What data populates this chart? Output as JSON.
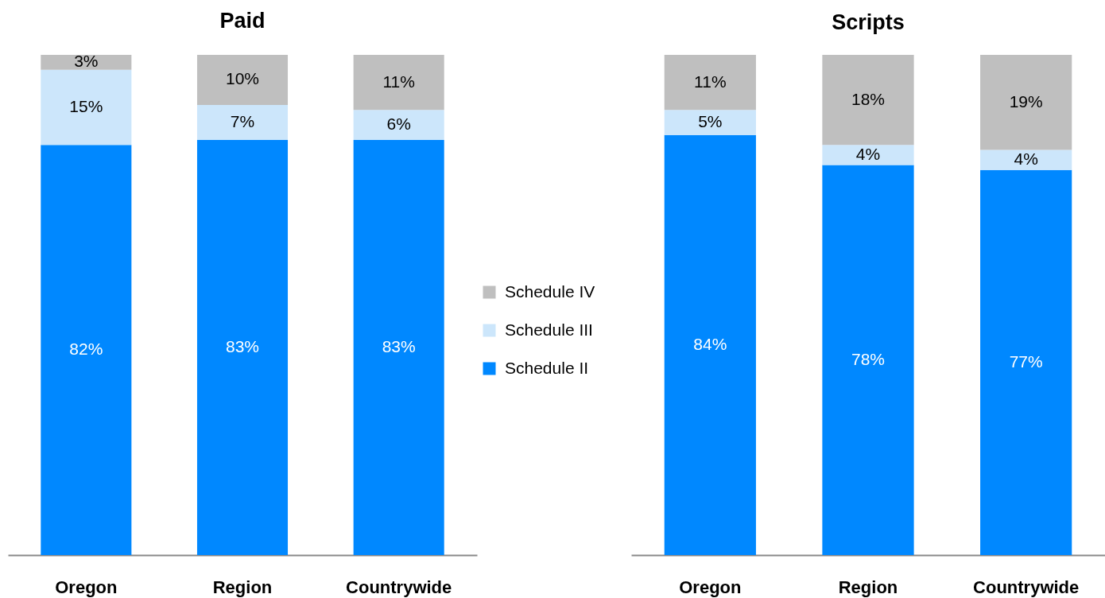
{
  "chart_data": [
    {
      "type": "bar",
      "title": "Paid",
      "categories": [
        "Oregon",
        "Region",
        "Countrywide"
      ],
      "stacked": true,
      "ylim": [
        0,
        100
      ],
      "tick_labels": "x",
      "legend": "right",
      "series": [
        {
          "name": "Schedule II",
          "color": "#0088ff",
          "values": [
            82,
            83,
            83
          ],
          "value_labels": [
            "82%",
            "83%",
            "83%"
          ]
        },
        {
          "name": "Schedule III",
          "color": "#cce6fb",
          "values": [
            15,
            7,
            6
          ],
          "value_labels": [
            "15%",
            "7%",
            "6%"
          ]
        },
        {
          "name": "Schedule IV",
          "color": "#bfbfbf",
          "values": [
            3,
            10,
            11
          ],
          "value_labels": [
            "3%",
            "10%",
            "11%"
          ]
        }
      ]
    },
    {
      "type": "bar",
      "title": "Scripts",
      "categories": [
        "Oregon",
        "Region",
        "Countrywide"
      ],
      "stacked": true,
      "ylim": [
        0,
        100
      ],
      "tick_labels": "x",
      "series": [
        {
          "color": "#0088ff",
          "values": [
            84,
            78,
            77
          ],
          "value_labels": [
            "84%",
            "78%",
            "77%"
          ]
        },
        {
          "color": "#cce6fb",
          "values": [
            5,
            4,
            4
          ],
          "value_labels": [
            "5%",
            "4%",
            "4%"
          ]
        },
        {
          "color": "#bfbfbf",
          "values": [
            11,
            18,
            19
          ],
          "value_labels": [
            "11%",
            "18%",
            "19%"
          ]
        }
      ]
    }
  ]
}
